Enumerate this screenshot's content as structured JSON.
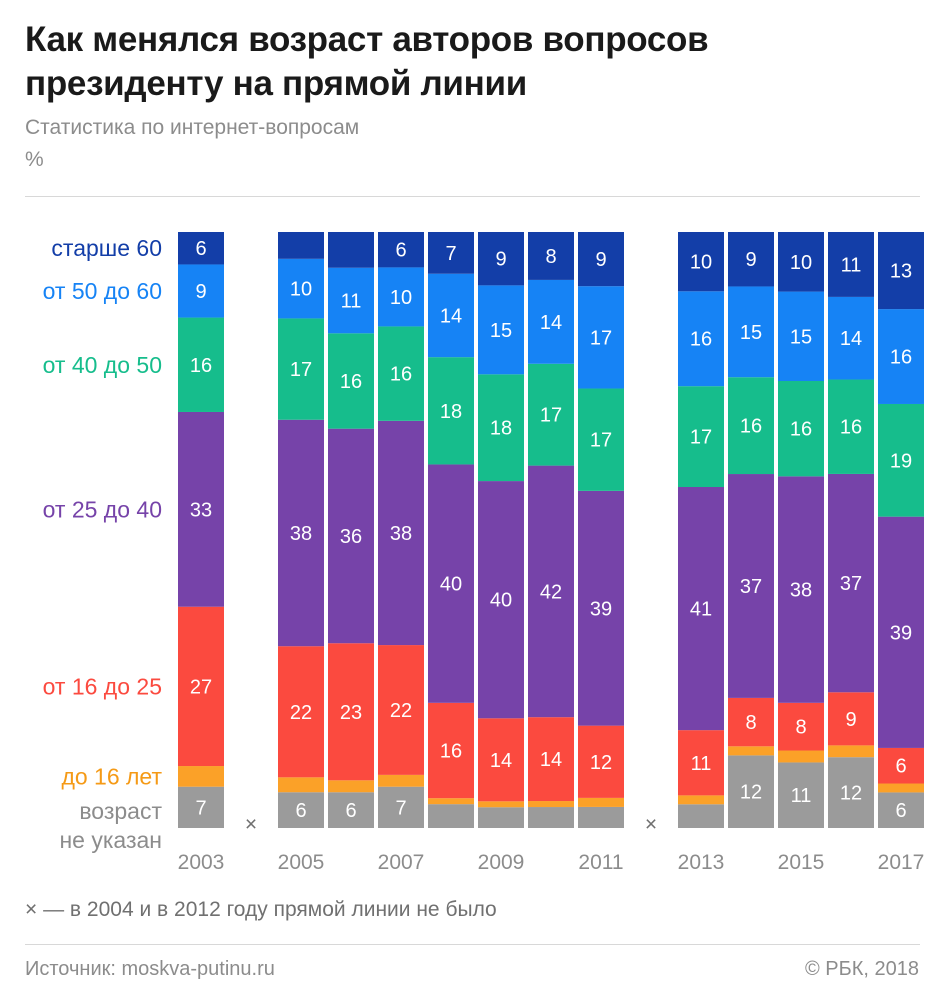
{
  "header": {
    "title": "Как менялся возраст авторов вопросов президенту на прямой линии",
    "subtitle": "Статистика по интернет-вопросам",
    "unit": "%"
  },
  "footnote": "× — в 2004 и в 2012 году прямой линии не было",
  "missing_marker": "×",
  "source": "Источник: moskva-putinu.ru",
  "copyright": "© РБК, 2018",
  "chart_data": {
    "type": "bar",
    "stacked": true,
    "normalized": true,
    "unit": "%",
    "title": "Как менялся возраст авторов вопросов президенту на прямой линии",
    "subtitle": "Статистика по интернет-вопросам",
    "xlabel": "",
    "ylabel": "",
    "ylim": [
      0,
      100
    ],
    "grid": false,
    "legend": "left",
    "categories": [
      "2003",
      "2004",
      "2005",
      "2006",
      "2007",
      "2008",
      "2009",
      "2010",
      "2011",
      "2012",
      "2013",
      "2014",
      "2015",
      "2016",
      "2017"
    ],
    "x_tick_labels": [
      "2003",
      "2005",
      "2007",
      "2009",
      "2011",
      "2013",
      "2015",
      "2017"
    ],
    "missing_years": [
      "2004",
      "2012"
    ],
    "series": [
      {
        "name": "возраст не указан",
        "color": "#9b9b9b",
        "values": [
          7,
          null,
          6,
          6,
          7,
          4,
          3.5,
          3.5,
          3.5,
          null,
          4,
          12,
          11,
          12,
          6
        ],
        "labels": [
          "7",
          "",
          "6",
          "6",
          "7",
          "",
          "",
          "",
          "",
          "",
          "",
          "12",
          "11",
          "12",
          "6"
        ]
      },
      {
        "name": "до 16 лет",
        "color": "#fba128",
        "values": [
          3.5,
          null,
          2.5,
          2,
          2,
          1,
          1,
          1,
          1.5,
          null,
          1.5,
          1.5,
          2,
          2,
          1.5
        ],
        "labels": [
          "",
          "",
          "",
          "",
          "",
          "",
          "",
          "",
          "",
          "",
          "",
          "",
          "",
          "",
          ""
        ]
      },
      {
        "name": "от 16 до 25",
        "color": "#fb4a3f",
        "values": [
          27,
          null,
          22,
          23,
          22,
          16,
          14,
          14,
          12,
          null,
          11,
          8,
          8,
          9,
          6
        ],
        "labels": [
          "27",
          "",
          "22",
          "23",
          "22",
          "16",
          "14",
          "14",
          "12",
          "",
          "11",
          "8",
          "8",
          "9",
          "6"
        ]
      },
      {
        "name": "от 25 до 40",
        "color": "#7643a9",
        "values": [
          33,
          null,
          38,
          36,
          38,
          40,
          40,
          42,
          39,
          null,
          41,
          37,
          38,
          37,
          39
        ],
        "labels": [
          "33",
          "",
          "38",
          "36",
          "38",
          "40",
          "40",
          "42",
          "39",
          "",
          "41",
          "37",
          "38",
          "37",
          "39"
        ]
      },
      {
        "name": "от 40 до 50",
        "color": "#16bd8c",
        "values": [
          16,
          null,
          17,
          16,
          16,
          18,
          18,
          17,
          17,
          null,
          17,
          16,
          16,
          16,
          19
        ],
        "labels": [
          "16",
          "",
          "17",
          "16",
          "16",
          "18",
          "18",
          "17",
          "17",
          "",
          "17",
          "16",
          "16",
          "16",
          "19"
        ]
      },
      {
        "name": "от 50 до 60",
        "color": "#1683f5",
        "values": [
          9,
          null,
          10,
          11,
          10,
          14,
          15,
          14,
          17,
          null,
          16,
          15,
          15,
          14,
          16
        ],
        "labels": [
          "9",
          "",
          "10",
          "11",
          "10",
          "14",
          "15",
          "14",
          "17",
          "",
          "16",
          "15",
          "15",
          "14",
          "16"
        ]
      },
      {
        "name": "старше 60",
        "color": "#133ea8",
        "values": [
          5.5,
          null,
          4.5,
          6,
          6,
          7,
          9,
          8,
          9,
          null,
          10,
          9,
          10,
          11,
          13
        ],
        "labels": [
          "6",
          "",
          "",
          "",
          "6",
          "7",
          "9",
          "8",
          "9",
          "",
          "10",
          "9",
          "10",
          "11",
          "13"
        ]
      }
    ]
  }
}
